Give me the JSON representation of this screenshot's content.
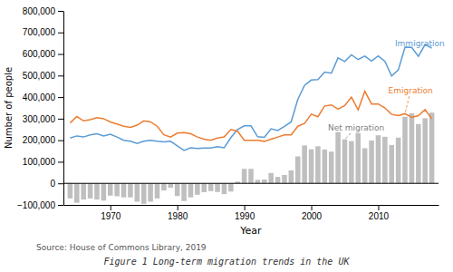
{
  "chart_data": {
    "type": "bar",
    "title": "Figure 1 Long-term migration trends in the UK",
    "source": "Source: House of Commons Library, 2019",
    "xlabel": "Year",
    "ylabel": "Number of people",
    "x": [
      1964,
      1965,
      1966,
      1967,
      1968,
      1969,
      1970,
      1971,
      1972,
      1973,
      1974,
      1975,
      1976,
      1977,
      1978,
      1979,
      1980,
      1981,
      1982,
      1983,
      1984,
      1985,
      1986,
      1987,
      1988,
      1989,
      1990,
      1991,
      1992,
      1993,
      1994,
      1995,
      1996,
      1997,
      1998,
      1999,
      2000,
      2001,
      2002,
      2003,
      2004,
      2005,
      2006,
      2007,
      2008,
      2009,
      2010,
      2011,
      2012,
      2013,
      2014,
      2015,
      2016,
      2017,
      2018
    ],
    "series": [
      {
        "type": "bar",
        "color": "#BFBFBF",
        "values": [
          -70000,
          -90000,
          -75000,
          -70000,
          -75000,
          -80000,
          -57000,
          -60000,
          -65000,
          -65000,
          -85000,
          -95000,
          -85000,
          -70000,
          -33000,
          -20000,
          -59000,
          -82000,
          -65000,
          -53000,
          -41000,
          -36000,
          -40000,
          -50000,
          -38000,
          8000,
          67000,
          67000,
          16000,
          18000,
          48000,
          30000,
          39000,
          60000,
          125000,
          176000,
          158000,
          172000,
          157000,
          147000,
          238000,
          204000,
          196000,
          233000,
          163000,
          199000,
          223000,
          216000,
          178000,
          212000,
          309000,
          325000,
          275000,
          302000,
          328000
        ]
      },
      {
        "type": "line",
        "color": "#5B9BD5",
        "values": [
          210000,
          220000,
          215000,
          225000,
          230000,
          220000,
          228000,
          215000,
          200000,
          195000,
          185000,
          195000,
          200000,
          195000,
          192000,
          195000,
          174000,
          153000,
          165000,
          162000,
          164000,
          164000,
          170000,
          165000,
          212000,
          250000,
          267000,
          267000,
          216000,
          213000,
          253000,
          245000,
          264000,
          285000,
          390000,
          454000,
          479000,
          481000,
          516000,
          511000,
          582000,
          565000,
          596000,
          574000,
          590000,
          567000,
          591000,
          566000,
          498000,
          526000,
          632000,
          631000,
          589000,
          644000,
          627000
        ]
      },
      {
        "type": "line",
        "color": "#ED7D31",
        "values": [
          280000,
          310000,
          290000,
          295000,
          305000,
          300000,
          285000,
          275000,
          265000,
          260000,
          270000,
          290000,
          285000,
          265000,
          225000,
          215000,
          233000,
          235000,
          230000,
          215000,
          205000,
          200000,
          210000,
          215000,
          250000,
          242000,
          200000,
          200000,
          200000,
          195000,
          205000,
          215000,
          225000,
          225000,
          265000,
          278000,
          321000,
          309000,
          359000,
          364000,
          344000,
          361000,
          400000,
          341000,
          427000,
          368000,
          368000,
          350000,
          320000,
          314000,
          323000,
          306000,
          314000,
          342000,
          299000
        ]
      }
    ],
    "annotations": [
      {
        "text": "Immigration",
        "x": 2015,
        "y": 631000,
        "text_x": 2012.5,
        "text_y": 650000,
        "color": "#5B9BD5"
      },
      {
        "text": "Emigration",
        "x": 2014,
        "y": 323000,
        "text_x": 2011.5,
        "text_y": 430000,
        "color": "#ED7D31"
      },
      {
        "text": "Net migration",
        "x": 2005,
        "y": 204000,
        "text_x": 2002.5,
        "text_y": 258000,
        "color": "#808080"
      }
    ],
    "xlim": [
      1963,
      2019
    ],
    "xticks": [
      1970,
      1980,
      1990,
      2000,
      2010
    ],
    "ylim": [
      -100000,
      800000
    ],
    "yticks": [
      {
        "value": -100000,
        "label": "−100,000"
      },
      0,
      {
        "value": 100000,
        "label": "100,000"
      },
      {
        "value": 200000,
        "label": "200,000"
      },
      {
        "value": 300000,
        "label": "300,000"
      },
      {
        "value": 400000,
        "label": "400,000"
      },
      {
        "value": 500000,
        "label": "500,000"
      },
      {
        "value": 600000,
        "label": "600,000"
      },
      {
        "value": 700000,
        "label": "700,000"
      },
      {
        "value": 800000,
        "label": "800,000"
      }
    ],
    "grid": false
  }
}
